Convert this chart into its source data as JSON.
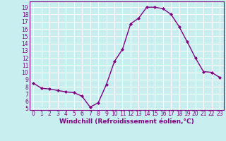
{
  "x": [
    0,
    1,
    2,
    3,
    4,
    5,
    6,
    7,
    8,
    9,
    10,
    11,
    12,
    13,
    14,
    15,
    16,
    17,
    18,
    19,
    20,
    21,
    22,
    23
  ],
  "y": [
    8.5,
    7.8,
    7.7,
    7.5,
    7.3,
    7.2,
    6.7,
    5.2,
    5.8,
    8.3,
    11.5,
    13.2,
    16.7,
    17.5,
    19.0,
    19.0,
    18.8,
    18.0,
    16.3,
    14.2,
    12.0,
    10.1,
    10.0,
    9.3
  ],
  "line_color": "#800080",
  "marker": "D",
  "marker_size": 2.0,
  "bg_color": "#c8eef0",
  "grid_color": "#ffffff",
  "xlabel": "Windchill (Refroidissement éolien,°C)",
  "xlim": [
    -0.5,
    23.5
  ],
  "ylim": [
    4.8,
    19.8
  ],
  "yticks": [
    5,
    6,
    7,
    8,
    9,
    10,
    11,
    12,
    13,
    14,
    15,
    16,
    17,
    18,
    19
  ],
  "xticks": [
    0,
    1,
    2,
    3,
    4,
    5,
    6,
    7,
    8,
    9,
    10,
    11,
    12,
    13,
    14,
    15,
    16,
    17,
    18,
    19,
    20,
    21,
    22,
    23
  ],
  "tick_label_fontsize": 5.5,
  "xlabel_fontsize": 6.5,
  "line_width": 1.0
}
